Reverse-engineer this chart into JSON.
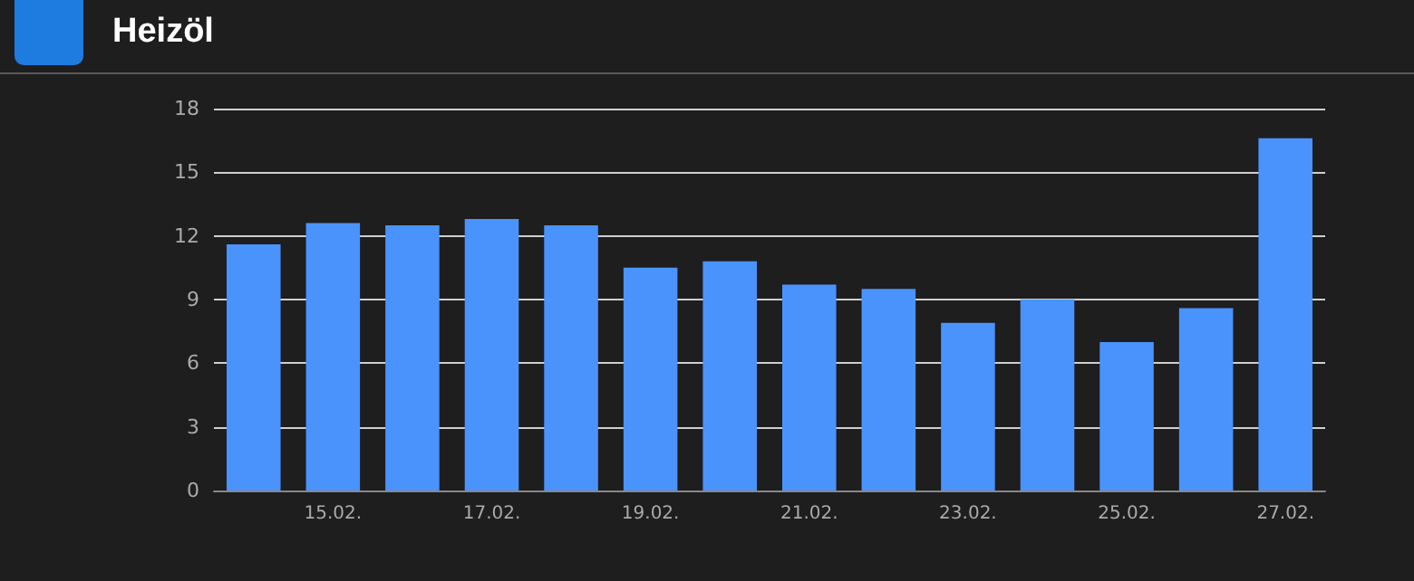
{
  "chart_data": {
    "type": "bar",
    "title": "Heizöl",
    "categories": [
      null,
      "15.02.",
      null,
      "17.02.",
      null,
      "19.02.",
      null,
      "21.02.",
      null,
      "23.02.",
      null,
      "25.02.",
      null,
      "27.02."
    ],
    "values": [
      11.6,
      12.6,
      12.5,
      12.8,
      12.5,
      10.5,
      10.8,
      9.7,
      9.5,
      7.9,
      9.0,
      7.0,
      8.6,
      16.6
    ],
    "color": "#4a93fd",
    "ylim": [
      0,
      18
    ],
    "yticks": [
      0,
      3,
      6,
      9,
      12,
      15,
      18
    ],
    "grid": "y"
  }
}
